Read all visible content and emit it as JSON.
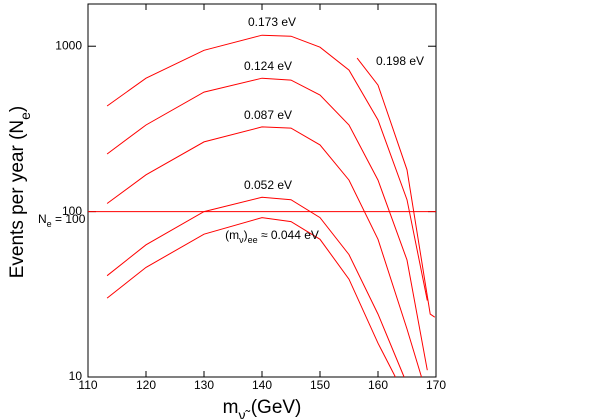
{
  "chart_data": {
    "type": "line",
    "x_label": [
      "m",
      "ν̃",
      "  (GeV)"
    ],
    "y_label": [
      "Events per year (N",
      "e",
      ")"
    ],
    "xlim": [
      110,
      170
    ],
    "xticks": [
      110,
      120,
      130,
      140,
      150,
      160,
      170
    ],
    "ylim": [
      10,
      1800
    ],
    "yticks": [
      10,
      100,
      1000
    ],
    "log_y": true,
    "color": "#ff0000",
    "series": [
      {
        "label": [
          "0.173 eV"
        ],
        "x": [
          113.3,
          120,
          130,
          140,
          145,
          150,
          155,
          160,
          165,
          168.5
        ],
        "values": [
          435,
          641,
          945,
          1165,
          1149,
          986,
          717,
          358,
          118,
          29
        ]
      },
      {
        "label": [
          "0.198 eV"
        ],
        "x": [
          156.4,
          160,
          165,
          169,
          169.8
        ],
        "values": [
          847,
          582,
          179,
          24,
          23
        ]
      },
      {
        "label": [
          "0.124 eV"
        ],
        "x": [
          113.3,
          120,
          130,
          140,
          145,
          150,
          155,
          160,
          165,
          168.5
        ],
        "values": [
          223,
          334,
          528,
          641,
          624,
          507,
          334,
          155,
          51,
          11
        ]
      },
      {
        "label": [
          "0.087 eV"
        ],
        "x": [
          113.3,
          120,
          130,
          140,
          145,
          150,
          155,
          160,
          165,
          167.5
        ],
        "values": [
          112,
          167,
          264,
          325,
          320,
          253,
          155,
          68,
          19.5,
          10
        ]
      },
      {
        "label": [
          "0.052 eV"
        ],
        "x": [
          113.3,
          120,
          130,
          140,
          145,
          150,
          155,
          160,
          164.5
        ],
        "values": [
          41,
          63,
          100,
          122,
          118,
          92,
          55,
          24,
          10
        ]
      },
      {
        "label": [
          "(m",
          "ν",
          ")",
          "ee",
          " ≈ 0.044 eV"
        ],
        "x": [
          113.3,
          120,
          130,
          140,
          145,
          150,
          155,
          160,
          163
        ],
        "values": [
          30,
          46,
          73,
          92,
          87,
          68,
          39,
          16,
          10
        ]
      },
      {
        "label": [
          "N",
          "e",
          " = 100"
        ],
        "x": [
          110,
          170
        ],
        "values": [
          100,
          100
        ]
      }
    ]
  }
}
